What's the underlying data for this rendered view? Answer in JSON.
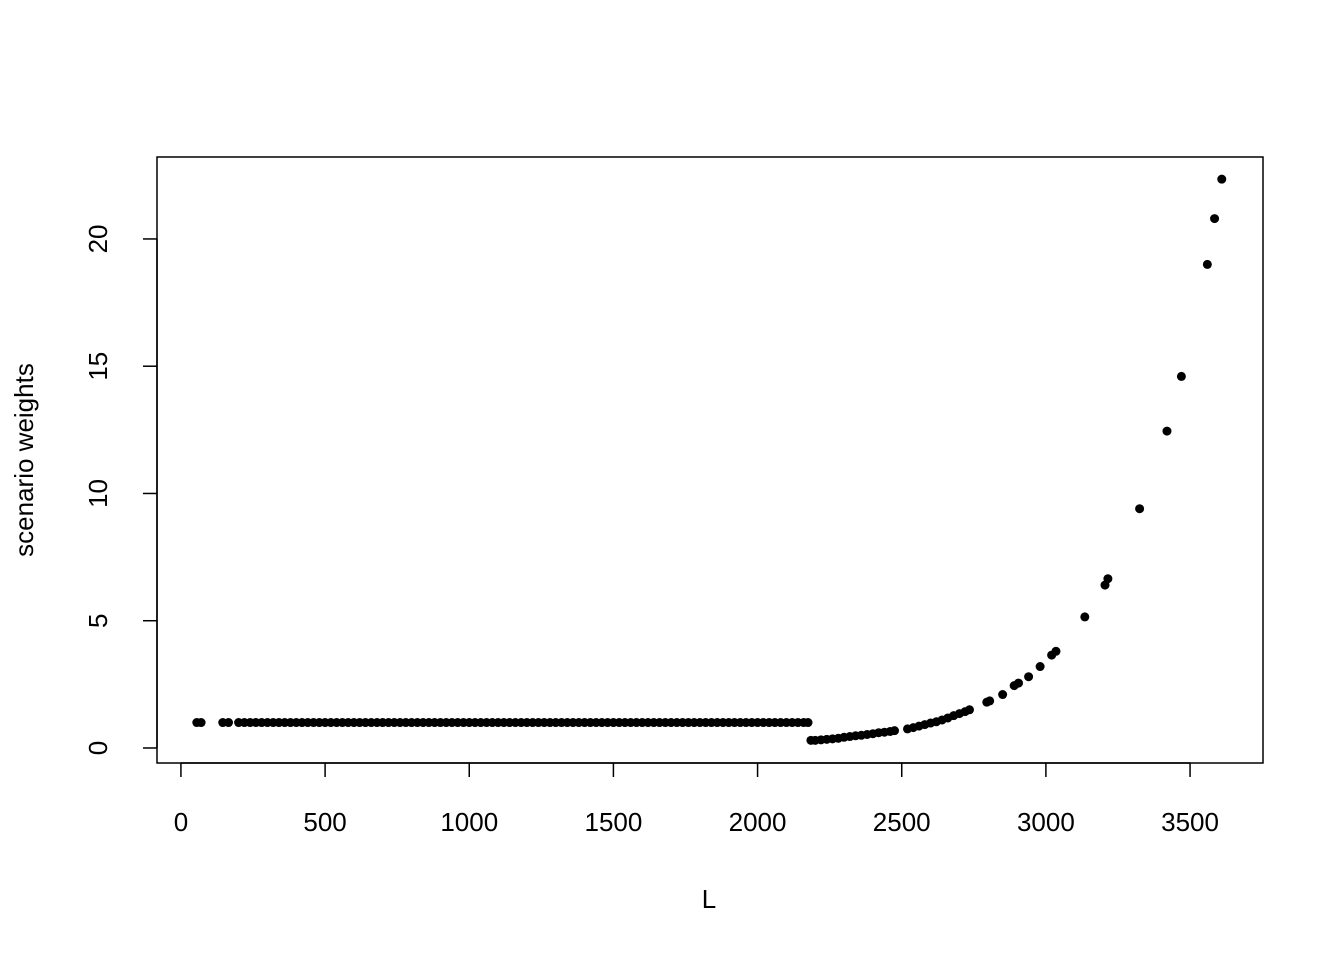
{
  "chart_data": {
    "type": "scatter",
    "x_label": "L",
    "y_label": "scenario weights",
    "color": "#000000",
    "xlim": [
      -83,
      3753
    ],
    "ylim": [
      -0.59,
      23.22
    ],
    "xticks": [
      0,
      500,
      1000,
      1500,
      2000,
      2500,
      3000,
      3500
    ],
    "yticks": [
      0,
      5,
      10,
      15,
      20
    ],
    "x": [
      55,
      70,
      145,
      165,
      200,
      220,
      240,
      260,
      280,
      300,
      320,
      340,
      360,
      380,
      400,
      420,
      440,
      460,
      480,
      500,
      520,
      540,
      560,
      580,
      600,
      620,
      640,
      660,
      680,
      700,
      720,
      740,
      760,
      780,
      800,
      820,
      840,
      860,
      880,
      900,
      920,
      940,
      960,
      980,
      1000,
      1020,
      1040,
      1060,
      1080,
      1100,
      1120,
      1140,
      1160,
      1180,
      1200,
      1220,
      1240,
      1260,
      1280,
      1300,
      1320,
      1340,
      1360,
      1380,
      1400,
      1420,
      1440,
      1460,
      1480,
      1500,
      1520,
      1540,
      1560,
      1580,
      1600,
      1620,
      1640,
      1660,
      1680,
      1700,
      1720,
      1740,
      1760,
      1780,
      1800,
      1820,
      1840,
      1860,
      1880,
      1900,
      1920,
      1940,
      1960,
      1980,
      2000,
      2020,
      2040,
      2060,
      2080,
      2100,
      2120,
      2140,
      2160,
      2175,
      2185,
      2200,
      2220,
      2240,
      2260,
      2280,
      2300,
      2320,
      2340,
      2360,
      2380,
      2400,
      2420,
      2440,
      2460,
      2475,
      2520,
      2540,
      2560,
      2580,
      2600,
      2620,
      2640,
      2660,
      2680,
      2700,
      2720,
      2735,
      2795,
      2805,
      2850,
      2890,
      2905,
      2940,
      2980,
      3020,
      3035,
      3135,
      3205,
      3215,
      3325,
      3420,
      3470,
      3560,
      3585,
      3610
    ],
    "values": [
      1,
      1,
      1,
      1,
      1,
      1,
      1,
      1,
      1,
      1,
      1,
      1,
      1,
      1,
      1,
      1,
      1,
      1,
      1,
      1,
      1,
      1,
      1,
      1,
      1,
      1,
      1,
      1,
      1,
      1,
      1,
      1,
      1,
      1,
      1,
      1,
      1,
      1,
      1,
      1,
      1,
      1,
      1,
      1,
      1,
      1,
      1,
      1,
      1,
      1,
      1,
      1,
      1,
      1,
      1,
      1,
      1,
      1,
      1,
      1,
      1,
      1,
      1,
      1,
      1,
      1,
      1,
      1,
      1,
      1,
      1,
      1,
      1,
      1,
      1,
      1,
      1,
      1,
      1,
      1,
      1,
      1,
      1,
      1,
      1,
      1,
      1,
      1,
      1,
      1,
      1,
      1,
      1,
      1,
      1,
      1,
      1,
      1,
      1,
      1,
      1,
      1,
      1,
      1,
      0.3,
      0.3,
      0.32,
      0.34,
      0.36,
      0.38,
      0.42,
      0.45,
      0.48,
      0.5,
      0.53,
      0.56,
      0.6,
      0.62,
      0.65,
      0.68,
      0.75,
      0.8,
      0.86,
      0.92,
      0.98,
      1.03,
      1.1,
      1.18,
      1.27,
      1.35,
      1.43,
      1.5,
      1.8,
      1.85,
      2.1,
      2.45,
      2.55,
      2.8,
      3.2,
      3.65,
      3.8,
      5.15,
      6.4,
      6.65,
      9.4,
      12.45,
      14.6,
      19.0,
      20.8,
      22.35
    ]
  }
}
